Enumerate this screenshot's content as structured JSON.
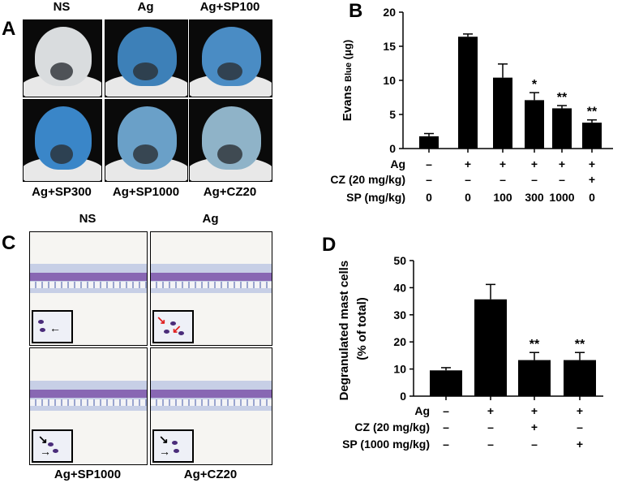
{
  "panel_letters": {
    "a": "A",
    "b": "B",
    "c": "C",
    "d": "D"
  },
  "panel_a": {
    "photos": [
      {
        "label": "NS",
        "stain": "#d9dcde"
      },
      {
        "label": "Ag",
        "stain": "#3d80b8"
      },
      {
        "label": "Ag+SP100",
        "stain": "#4a8cc4"
      },
      {
        "label": "Ag+SP300",
        "stain": "#3a86c8"
      },
      {
        "label": "Ag+SP1000",
        "stain": "#6aa0c8"
      },
      {
        "label": "Ag+CZ20",
        "stain": "#8fb3c8"
      }
    ]
  },
  "panel_c": {
    "labels": {
      "ns": "NS",
      "ag": "Ag",
      "sp1000": "Ag+SP1000",
      "cz20": "Ag+CZ20"
    },
    "arrow_colors": {
      "black": "#000000",
      "red": "#e02020"
    }
  },
  "chart_data": [
    {
      "panel": "B",
      "type": "bar",
      "ylabel_main": "Evans ",
      "ylabel_emph": "Blue",
      "ylabel_unit": " (μg)",
      "ylim": [
        0,
        20
      ],
      "yticks": [
        "0",
        "5",
        "10",
        "15",
        "20"
      ],
      "values": [
        1.8,
        16.4,
        10.4,
        7.1,
        5.9,
        3.8
      ],
      "errors": [
        0.4,
        0.4,
        2.0,
        1.1,
        0.4,
        0.4
      ],
      "significance": [
        "",
        "",
        "",
        "*",
        "**",
        "**"
      ],
      "condition_rows": [
        {
          "label": "Ag",
          "values": [
            "–",
            "+",
            "+",
            "+",
            "+",
            "+"
          ]
        },
        {
          "label": "CZ (20 mg/kg)",
          "values": [
            "–",
            "–",
            "–",
            "–",
            "–",
            "+"
          ]
        },
        {
          "label": "SP (mg/kg)",
          "values": [
            "0",
            "0",
            "100",
            "300",
            "1000",
            "0"
          ]
        }
      ]
    },
    {
      "panel": "D",
      "type": "bar",
      "ylabel_line1": "Degranulated mast cells",
      "ylabel_line2": "(% of total)",
      "ylim": [
        0,
        50
      ],
      "yticks": [
        "0",
        "10",
        "20",
        "30",
        "40",
        "50"
      ],
      "values": [
        9.5,
        35.7,
        13.3,
        13.3
      ],
      "errors": [
        1.0,
        5.5,
        2.8,
        2.8
      ],
      "significance": [
        "",
        "",
        "**",
        "**"
      ],
      "condition_rows": [
        {
          "label": "Ag",
          "values": [
            "–",
            "+",
            "+",
            "+"
          ]
        },
        {
          "label": "CZ (20 mg/kg)",
          "values": [
            "–",
            "–",
            "+",
            "–"
          ]
        },
        {
          "label": "SP (1000 mg/kg)",
          "values": [
            "–",
            "–",
            "–",
            "+"
          ]
        }
      ]
    }
  ]
}
